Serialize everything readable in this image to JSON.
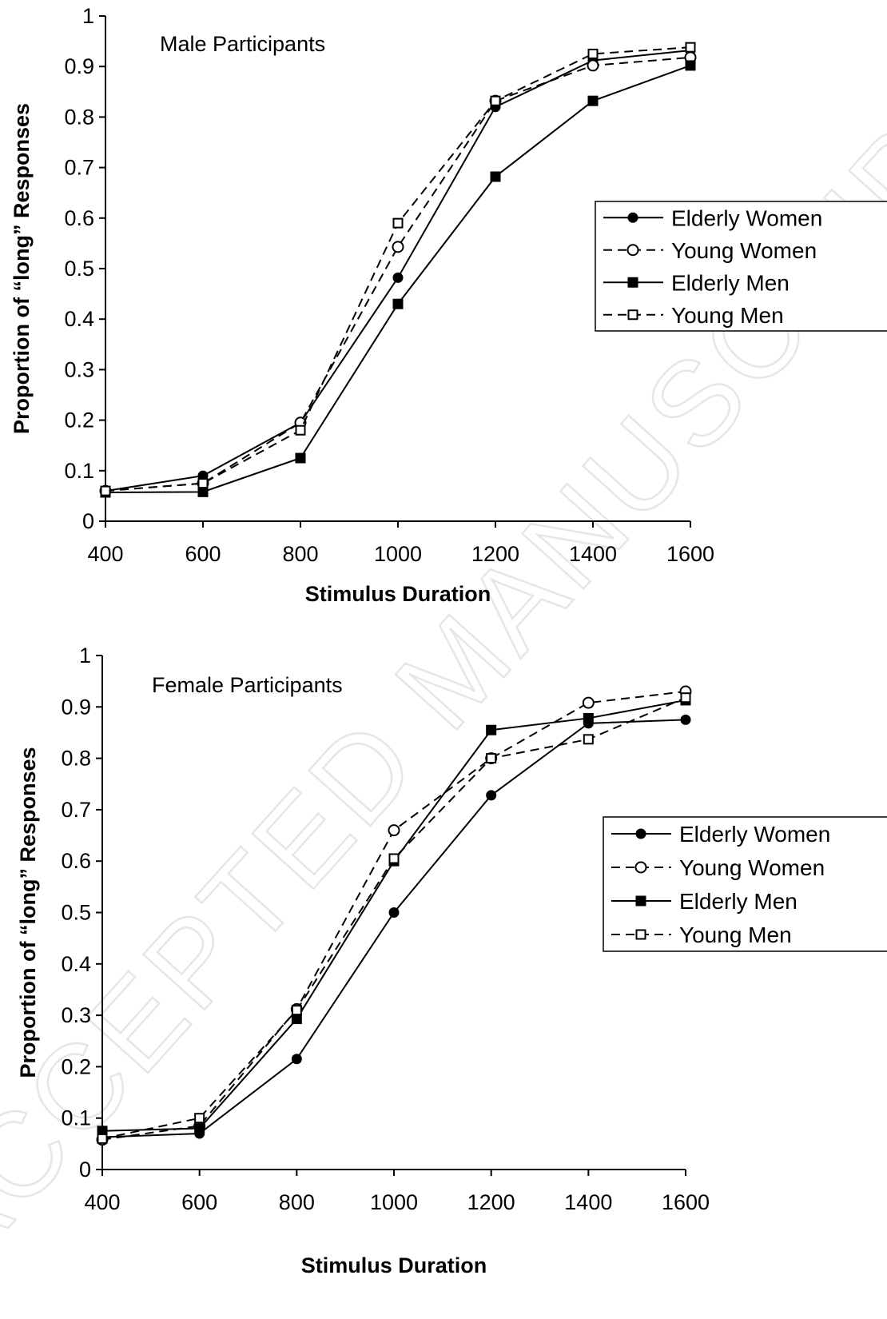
{
  "watermark": "ACCEPTED MANUSCRIPT",
  "chart_data": [
    {
      "type": "line",
      "title": "Male Participants",
      "xlabel": "Stimulus Duration",
      "ylabel": "Proportion of “long” Responses",
      "x": [
        400,
        600,
        800,
        1000,
        1200,
        1400,
        1600
      ],
      "xticks": [
        "400",
        "600",
        "800",
        "1000",
        "1200",
        "1400",
        "1600"
      ],
      "xlim": [
        400,
        1600
      ],
      "ylim": [
        0,
        1
      ],
      "yticks": [
        "0",
        "0.1",
        "0.2",
        "0.3",
        "0.4",
        "0.5",
        "0.6",
        "0.7",
        "0.8",
        "0.9",
        "1"
      ],
      "legend_position": "right",
      "grid": false,
      "series": [
        {
          "name": "Elderly Women",
          "line": "solid",
          "marker": "filled-circle",
          "values": [
            0.06,
            0.09,
            0.195,
            0.482,
            0.82,
            0.912,
            0.932
          ]
        },
        {
          "name": "Young Women",
          "line": "dashed",
          "marker": "open-circle",
          "values": [
            0.06,
            0.075,
            0.195,
            0.543,
            0.832,
            0.902,
            0.918
          ]
        },
        {
          "name": "Elderly Men",
          "line": "solid",
          "marker": "filled-square",
          "values": [
            0.057,
            0.058,
            0.125,
            0.43,
            0.682,
            0.832,
            0.902
          ]
        },
        {
          "name": "Young Men",
          "line": "dashed",
          "marker": "open-square",
          "values": [
            0.06,
            0.075,
            0.18,
            0.59,
            0.832,
            0.925,
            0.938
          ]
        }
      ]
    },
    {
      "type": "line",
      "title": "Female Participants",
      "xlabel": "Stimulus Duration",
      "ylabel": "Proportion of “long” Responses",
      "x": [
        400,
        600,
        800,
        1000,
        1200,
        1400,
        1600
      ],
      "xticks": [
        "400",
        "600",
        "800",
        "1000",
        "1200",
        "1400",
        "1600"
      ],
      "xlim": [
        400,
        1600
      ],
      "ylim": [
        0,
        1
      ],
      "yticks": [
        "0",
        "0.1",
        "0.2",
        "0.3",
        "0.4",
        "0.5",
        "0.6",
        "0.7",
        "0.8",
        "0.9",
        "1"
      ],
      "legend_position": "right",
      "grid": false,
      "series": [
        {
          "name": "Elderly Women",
          "line": "solid",
          "marker": "filled-circle",
          "values": [
            0.063,
            0.07,
            0.215,
            0.5,
            0.728,
            0.868,
            0.875
          ]
        },
        {
          "name": "Young Women",
          "line": "dashed",
          "marker": "open-circle",
          "values": [
            0.058,
            0.085,
            0.312,
            0.66,
            0.8,
            0.908,
            0.93
          ]
        },
        {
          "name": "Elderly Men",
          "line": "solid",
          "marker": "filled-square",
          "values": [
            0.075,
            0.08,
            0.293,
            0.6,
            0.855,
            0.878,
            0.913
          ]
        },
        {
          "name": "Young Men",
          "line": "dashed",
          "marker": "open-square",
          "values": [
            0.06,
            0.1,
            0.31,
            0.605,
            0.8,
            0.837,
            0.918
          ]
        }
      ]
    }
  ]
}
